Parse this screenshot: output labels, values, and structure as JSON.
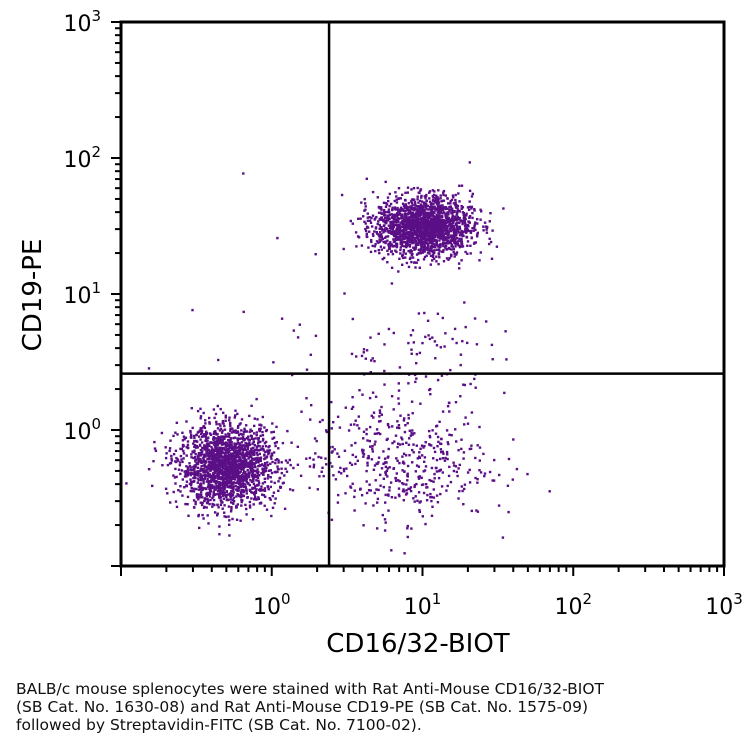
{
  "chart_data": {
    "type": "scatter",
    "title": "",
    "xlabel": "CD16/32-BIOT",
    "ylabel": "CD19-PE",
    "x_scale": "log",
    "y_scale": "log",
    "xlim": [
      0.1,
      1000
    ],
    "ylim": [
      0.1,
      1000
    ],
    "x_ticks": [
      {
        "base": "10",
        "exp": "0",
        "value": 1
      },
      {
        "base": "10",
        "exp": "1",
        "value": 10
      },
      {
        "base": "10",
        "exp": "2",
        "value": 100
      },
      {
        "base": "10",
        "exp": "3",
        "value": 1000
      }
    ],
    "y_ticks": [
      {
        "base": "10",
        "exp": "0",
        "value": 1
      },
      {
        "base": "10",
        "exp": "1",
        "value": 10
      },
      {
        "base": "10",
        "exp": "2",
        "value": 100
      },
      {
        "base": "10",
        "exp": "3",
        "value": 1000
      }
    ],
    "grid": false,
    "point_color": "#5b0f86",
    "quadrant_gates": {
      "x": 2.4,
      "y": 2.6
    },
    "populations": [
      {
        "center_x": 0.5,
        "center_y": 0.55,
        "spread_x_log": 0.16,
        "spread_y_log": 0.15,
        "count": 1900
      },
      {
        "center_x": 10,
        "center_y": 32,
        "spread_x_log": 0.16,
        "spread_y_log": 0.11,
        "count": 1900
      },
      {
        "center_x": 7,
        "center_y": 0.6,
        "spread_x_log": 0.3,
        "spread_y_log": 0.22,
        "count": 450
      },
      {
        "center_x": 8,
        "center_y": 3.5,
        "spread_x_log": 0.26,
        "spread_y_log": 0.22,
        "count": 90
      },
      {
        "center_x": 1.5,
        "center_y": 3,
        "spread_x_log": 0.8,
        "spread_y_log": 0.8,
        "count": 35
      }
    ]
  },
  "caption": {
    "line1": "BALB/c mouse splenocytes were stained with Rat Anti-Mouse CD16/32-BIOT",
    "line2": "(SB Cat. No. 1630-08) and Rat Anti-Mouse CD19-PE (SB Cat. No. 1575-09)",
    "line3": "followed by Streptavidin-FITC (SB Cat. No. 7100-02)."
  }
}
